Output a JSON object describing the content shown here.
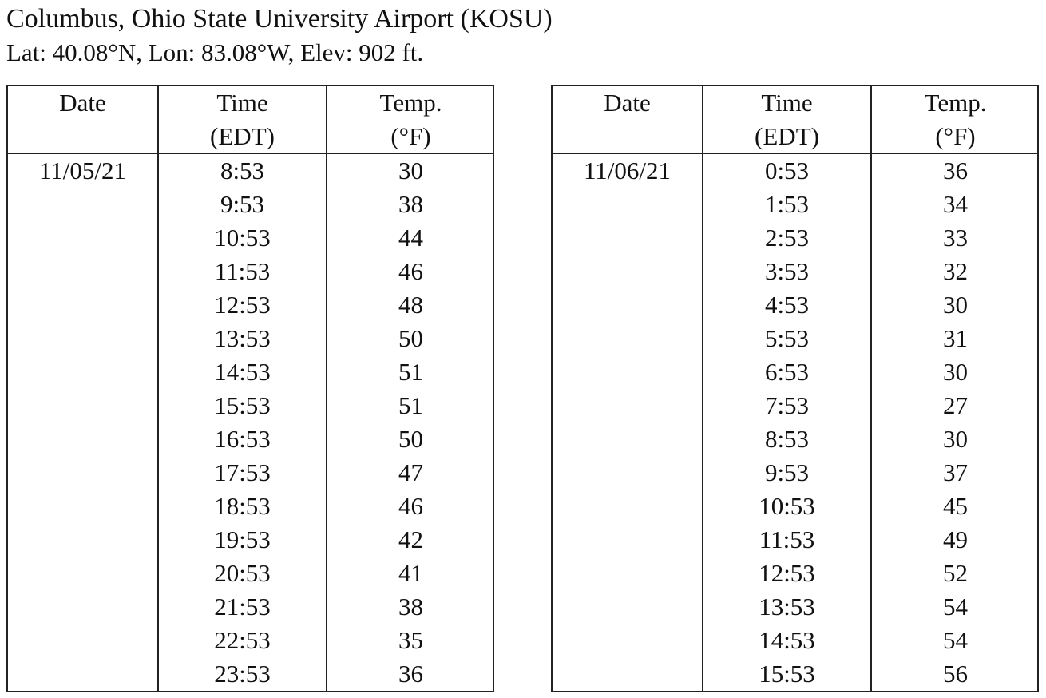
{
  "title": "Columbus, Ohio State University Airport (KOSU)",
  "subtitle": "Lat: 40.08°N, Lon: 83.08°W, Elev: 902 ft.",
  "columns": {
    "date": "Date",
    "time": "Time",
    "time_unit": "(EDT)",
    "temp": "Temp.",
    "temp_unit": "(°F)"
  },
  "tables": [
    {
      "date": "11/05/21",
      "rows": [
        {
          "time": "8:53",
          "temp": "30"
        },
        {
          "time": "9:53",
          "temp": "38"
        },
        {
          "time": "10:53",
          "temp": "44"
        },
        {
          "time": "11:53",
          "temp": "46"
        },
        {
          "time": "12:53",
          "temp": "48"
        },
        {
          "time": "13:53",
          "temp": "50"
        },
        {
          "time": "14:53",
          "temp": "51"
        },
        {
          "time": "15:53",
          "temp": "51"
        },
        {
          "time": "16:53",
          "temp": "50"
        },
        {
          "time": "17:53",
          "temp": "47"
        },
        {
          "time": "18:53",
          "temp": "46"
        },
        {
          "time": "19:53",
          "temp": "42"
        },
        {
          "time": "20:53",
          "temp": "41"
        },
        {
          "time": "21:53",
          "temp": "38"
        },
        {
          "time": "22:53",
          "temp": "35"
        },
        {
          "time": "23:53",
          "temp": "36"
        }
      ]
    },
    {
      "date": "11/06/21",
      "rows": [
        {
          "time": "0:53",
          "temp": "36"
        },
        {
          "time": "1:53",
          "temp": "34"
        },
        {
          "time": "2:53",
          "temp": "33"
        },
        {
          "time": "3:53",
          "temp": "32"
        },
        {
          "time": "4:53",
          "temp": "30"
        },
        {
          "time": "5:53",
          "temp": "31"
        },
        {
          "time": "6:53",
          "temp": "30"
        },
        {
          "time": "7:53",
          "temp": "27"
        },
        {
          "time": "8:53",
          "temp": "30"
        },
        {
          "time": "9:53",
          "temp": "37"
        },
        {
          "time": "10:53",
          "temp": "45"
        },
        {
          "time": "11:53",
          "temp": "49"
        },
        {
          "time": "12:53",
          "temp": "52"
        },
        {
          "time": "13:53",
          "temp": "54"
        },
        {
          "time": "14:53",
          "temp": "54"
        },
        {
          "time": "15:53",
          "temp": "56"
        }
      ]
    }
  ]
}
